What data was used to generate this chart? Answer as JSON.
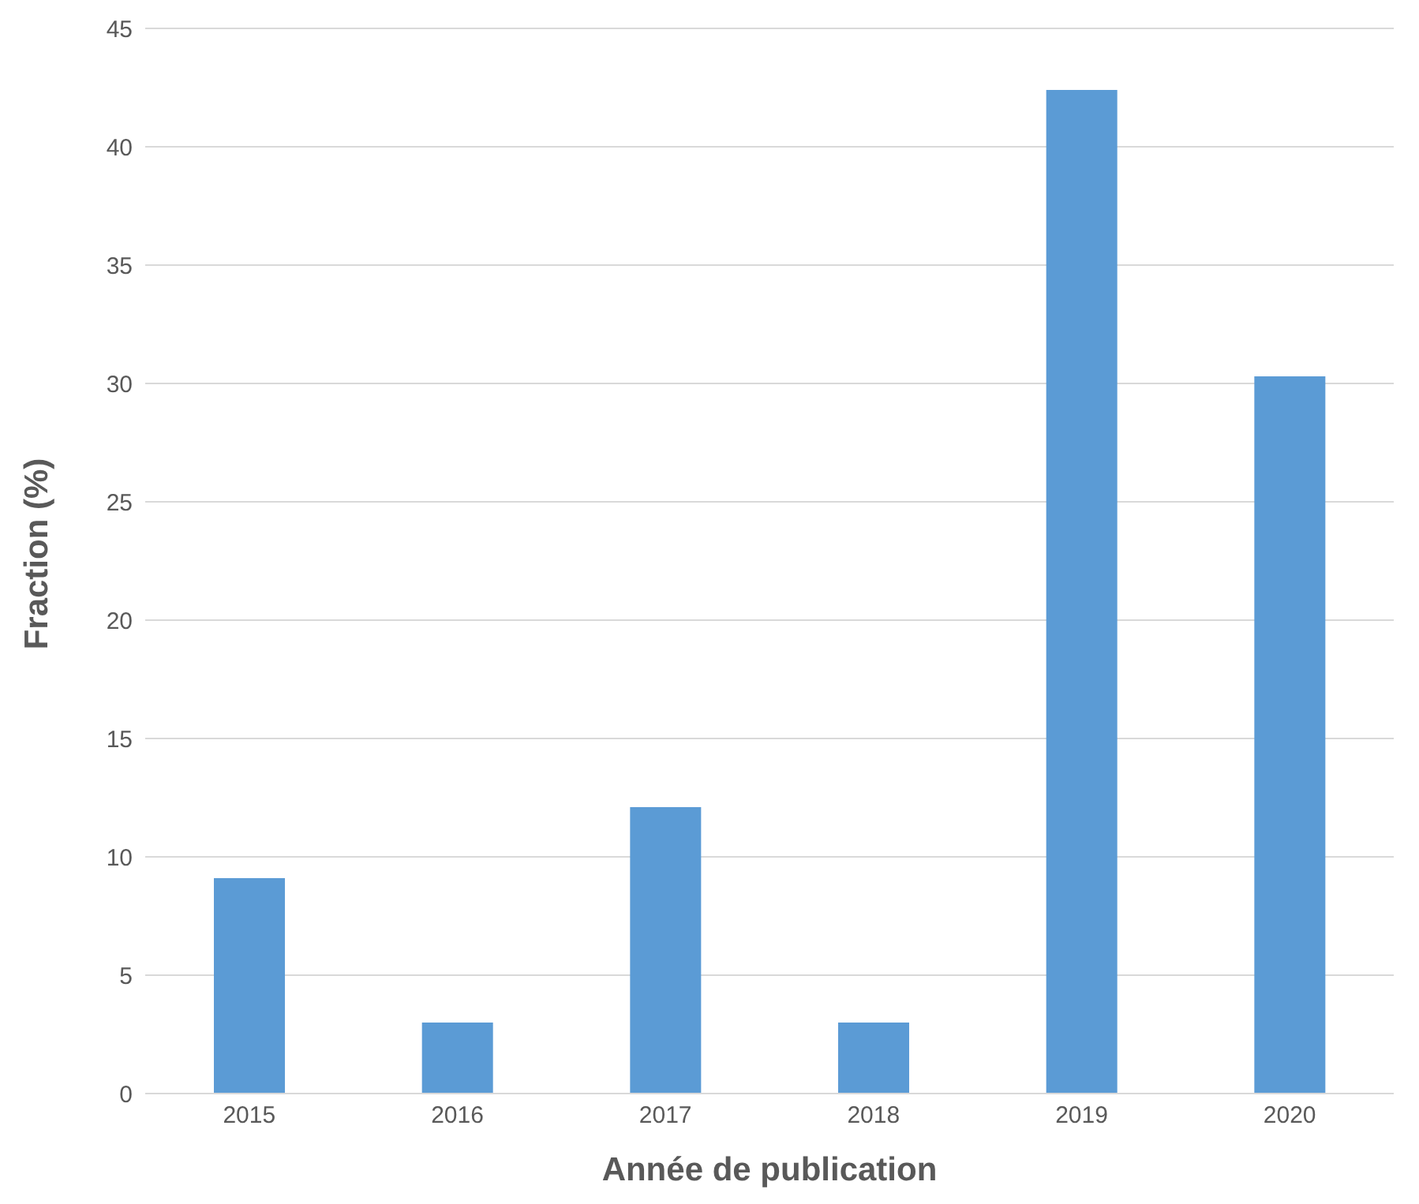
{
  "chart_data": {
    "type": "bar",
    "xlabel": "Année de publication",
    "ylabel": "Fraction (%)",
    "categories": [
      "2015",
      "2016",
      "2017",
      "2018",
      "2019",
      "2020"
    ],
    "values": [
      9.1,
      3.0,
      12.1,
      3.0,
      42.4,
      30.3
    ],
    "color": "#5b9bd5",
    "ylim": [
      0,
      45
    ],
    "yticks": [
      0,
      5,
      10,
      15,
      20,
      25,
      30,
      35,
      40,
      45
    ],
    "grid": "y"
  }
}
